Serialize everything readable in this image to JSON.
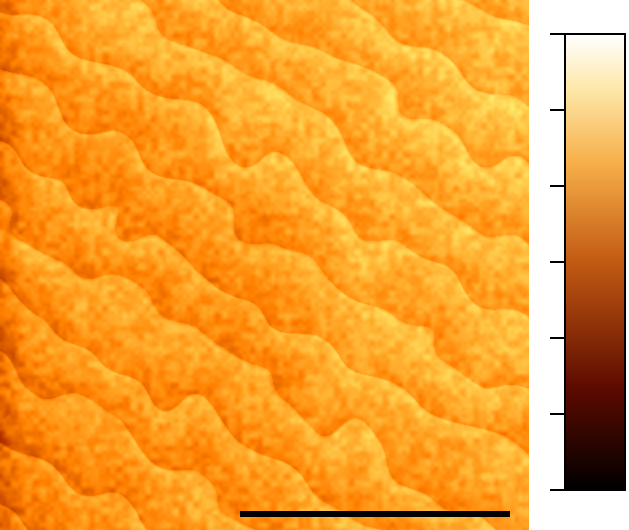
{
  "image": {
    "subject": "afm-height-map",
    "palette_name": "afmhot",
    "colors": {
      "darkest": "#000000",
      "dark": "#5c0a00",
      "mid": "#c25a12",
      "bright": "#f7b04a",
      "lightest": "#ffffff"
    }
  },
  "scale_bar": {
    "label": ""
  },
  "colorbar": {
    "tick_count": 7,
    "tick_labels": []
  }
}
